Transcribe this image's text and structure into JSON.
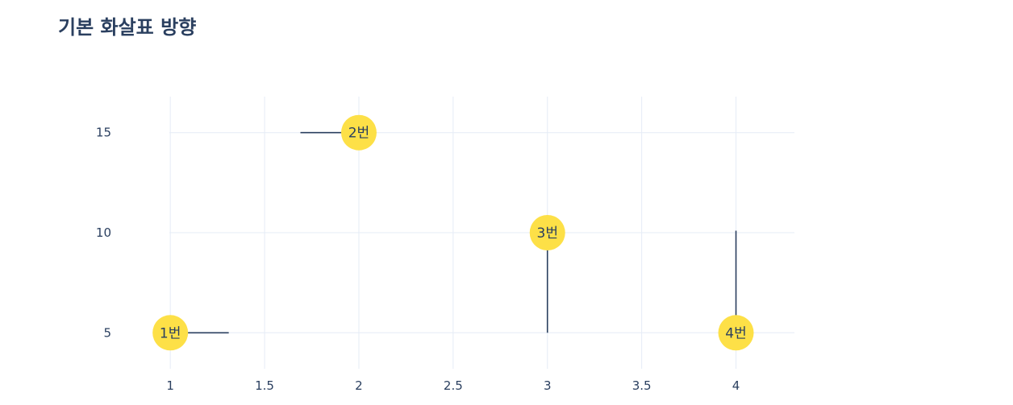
{
  "chart_data": {
    "type": "scatter",
    "title": "기본 화살표 방향",
    "xlabel": "",
    "ylabel": "",
    "xlim": [
      0.995,
      4.31
    ],
    "ylim": [
      3.2,
      16.8
    ],
    "x_ticks": [
      1,
      1.5,
      2,
      2.5,
      3,
      3.5,
      4
    ],
    "x_tick_labels": [
      "1",
      "1.5",
      "2",
      "2.5",
      "3",
      "3.5",
      "4"
    ],
    "y_ticks": [
      5,
      10,
      15
    ],
    "y_tick_labels": [
      "5",
      "10",
      "15"
    ],
    "grid": true,
    "legend": "none",
    "points": [
      {
        "x": 1,
        "y": 5,
        "label": "1번"
      },
      {
        "x": 2,
        "y": 15,
        "label": "2번"
      },
      {
        "x": 3,
        "y": 10,
        "label": "3번"
      },
      {
        "x": 4,
        "y": 5,
        "label": "4번"
      }
    ],
    "arrows": [
      {
        "from": [
          1.31,
          5
        ],
        "to": [
          1,
          5
        ]
      },
      {
        "from": [
          1.69,
          15
        ],
        "to": [
          2,
          15
        ]
      },
      {
        "from": [
          3,
          5
        ],
        "to": [
          3,
          10
        ]
      },
      {
        "from": [
          4,
          10.1
        ],
        "to": [
          4,
          5
        ]
      }
    ],
    "colors": {
      "marker": "#fde047",
      "arrow": "#2a3f5f",
      "grid": "#e5ecf6",
      "text": "#2a3f5f"
    }
  }
}
